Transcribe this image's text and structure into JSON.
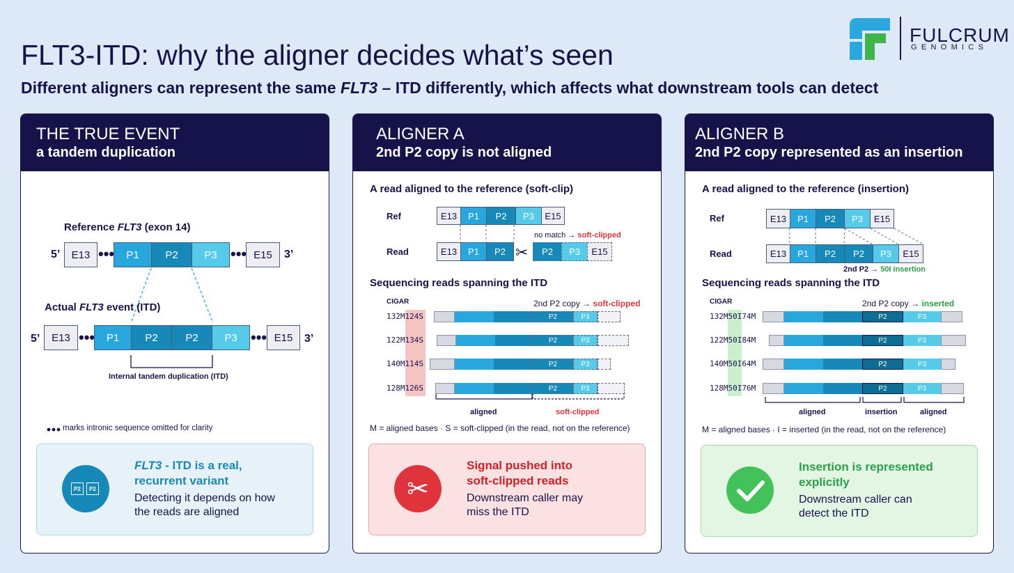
{
  "title": "FLT3-ITD: why the aligner decides what’s seen",
  "subtitle_pre": "Different aligners can represent the same ",
  "subtitle_gene": "FLT3",
  "subtitle_post": " – ITD differently, which affects what downstream tools can detect",
  "logo": {
    "line1": "FULCRUM",
    "line2": "GENOMICS",
    "icon": "fulcrum-f-logo-icon"
  },
  "colors": {
    "navy": "#16124a",
    "p1": "#28a7de",
    "p2": "#1789b8",
    "p3": "#55cae9",
    "red": "#e0343c",
    "green": "#2aa146"
  },
  "panel1": {
    "header1": "THE TRUE EVENT",
    "header2": "a tandem duplication",
    "ref_label_pre": "Reference ",
    "ref_label_gene": "FLT3",
    "ref_label_post": " (exon 14)",
    "actual_label_pre": "Actual ",
    "actual_label_gene": "FLT3",
    "actual_label_post": " event (ITD)",
    "five": "5’",
    "three": "3’",
    "ref_segments": [
      "E13",
      "P1",
      "P2",
      "P3",
      "E15"
    ],
    "itd_segments": [
      "E13",
      "P1",
      "P2",
      "P2",
      "P3",
      "E15"
    ],
    "dots": "•••",
    "itd_caption": "Internal tandem duplication (ITD)",
    "footnote": "marks intronic sequence omitted for clarity",
    "note_title_gene": "FLT3",
    "note_title_rest": " - ITD is a real,",
    "note_title_line2": "recurrent variant",
    "note_body1": "Detecting it depends on how",
    "note_body2": "the reads are aligned",
    "note_icon_labels": [
      "P2",
      "P2"
    ]
  },
  "panel2": {
    "header1": "ALIGNER A",
    "header2": "2nd P2 copy is not aligned",
    "read_title": "A read aligned to the reference (soft-clip)",
    "ref": "Ref",
    "read": "Read",
    "ref_segments": [
      "E13",
      "P1",
      "P2",
      "P3",
      "E15"
    ],
    "read_segments_left": [
      "E13",
      "P1",
      "P2"
    ],
    "read_segments_right": [
      "P2",
      "P3",
      "E15"
    ],
    "no_match": "no match →",
    "soft_clipped": "soft-clipped",
    "seq_title": "Sequencing reads spanning the ITD",
    "cigar": "CIGAR",
    "copy_note": "2nd P2 copy →",
    "cigars": [
      "132M124S",
      "122M134S",
      "140M114S",
      "128M126S"
    ],
    "bar_labels": [
      "P2",
      "P3"
    ],
    "aligned": "aligned",
    "legend": "M = aligned bases · S = soft-clipped (in the read, not on the reference)",
    "note_title1": "Signal pushed into",
    "note_title2": "soft-clipped reads",
    "note_body1": "Downstream caller may",
    "note_body2": "miss the ITD"
  },
  "panel3": {
    "header1": "ALIGNER B",
    "header2": "2nd P2 copy represented as an insertion",
    "read_title": "A read aligned to the reference (insertion)",
    "ref": "Ref",
    "read": "Read",
    "ref_segments": [
      "E13",
      "P1",
      "P2",
      "P3",
      "E15"
    ],
    "read_segments": [
      "E13",
      "P1",
      "P2",
      "P2",
      "P3",
      "E15"
    ],
    "ins_note_pre": "2nd P2 →",
    "ins_note": "50I insertion",
    "seq_title": "Sequencing reads spanning the ITD",
    "cigar": "CIGAR",
    "copy_note": "2nd P2 copy →",
    "inserted": "inserted",
    "cigars": [
      "132M50I74M",
      "122M50I84M",
      "140M50I64M",
      "128M50I76M"
    ],
    "bar_labels": [
      "P2",
      "P3"
    ],
    "aligned": "aligned",
    "insertion": "insertion",
    "legend": "M = aligned bases · I = inserted (in the read, not on the reference)",
    "note_title1": "Insertion is represented",
    "note_title2": "explicitly",
    "note_body1": "Downstream caller can",
    "note_body2": "detect the ITD"
  }
}
